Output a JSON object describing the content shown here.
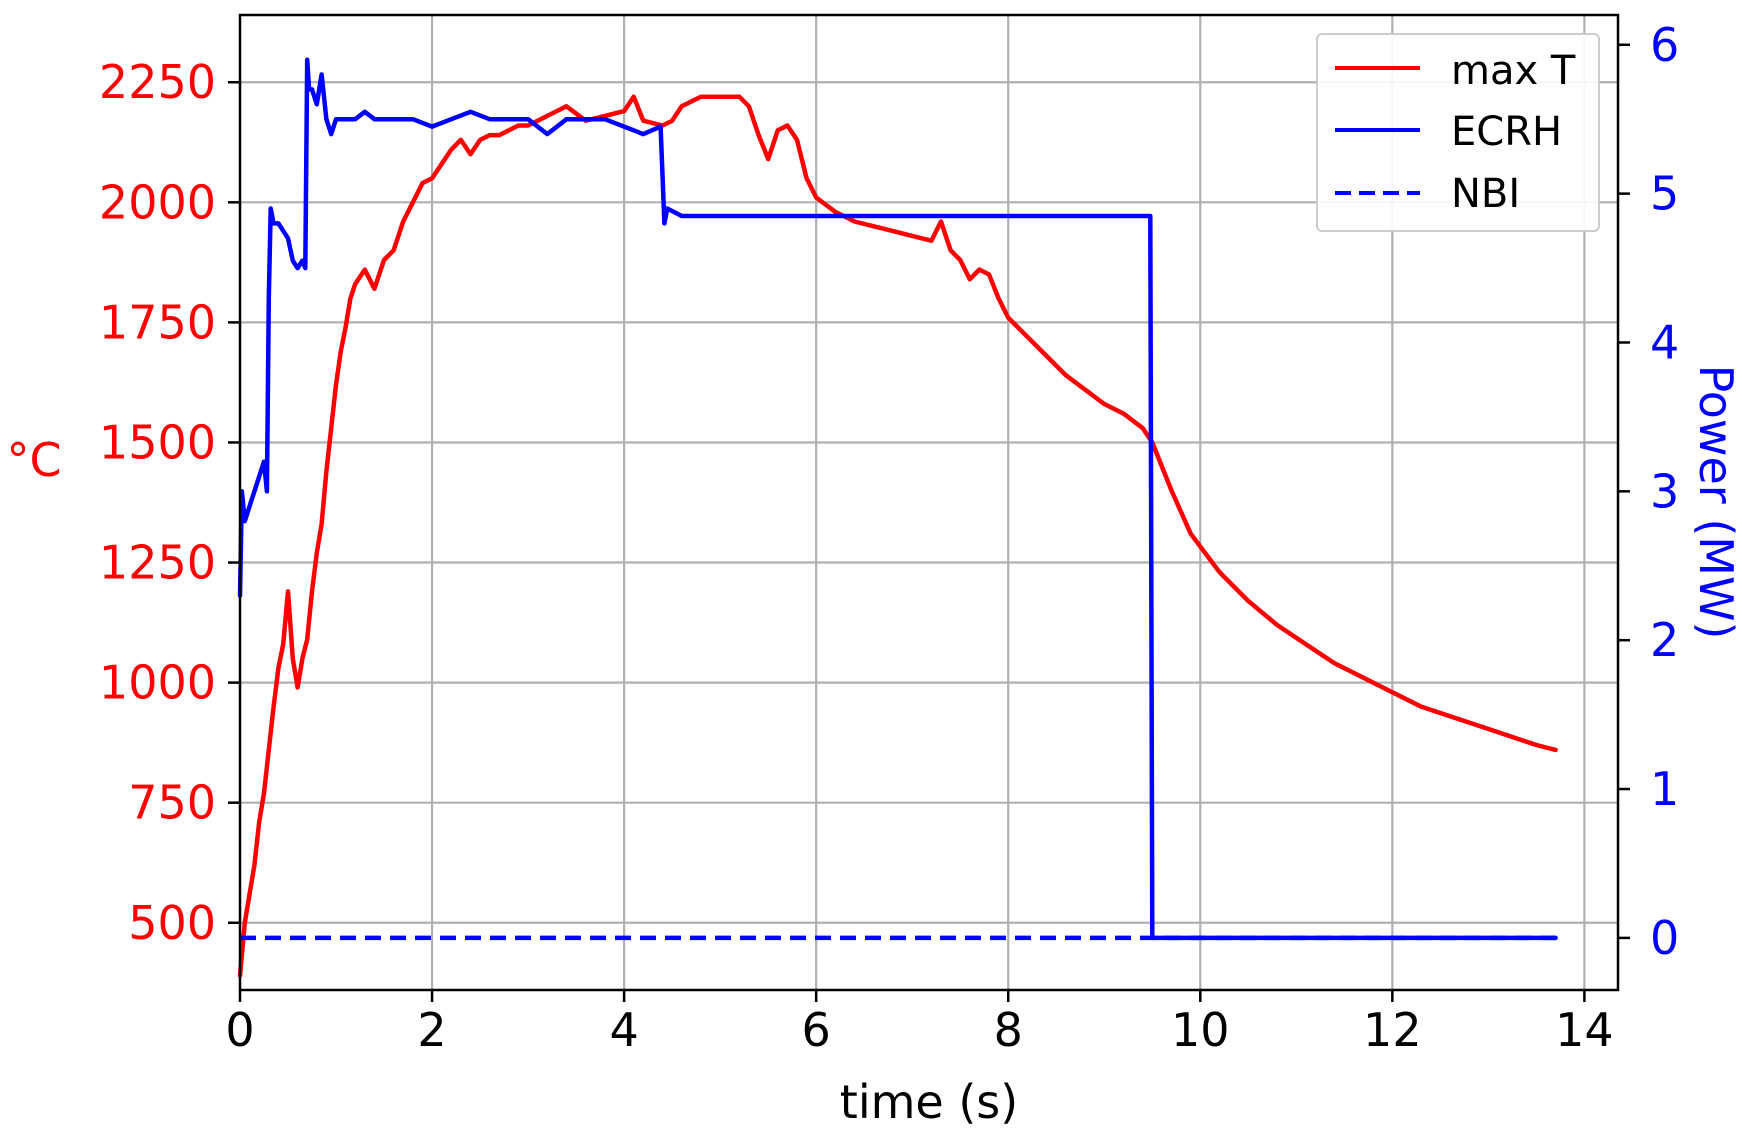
{
  "chart_data": {
    "type": "line",
    "title": "",
    "xlabel": "time (s)",
    "ylabel_left": "°C",
    "ylabel_right": "Power (MW)",
    "xlim": [
      0,
      14.35
    ],
    "ylim_left": [
      360,
      2390
    ],
    "ylim_right": [
      -0.35,
      6.2
    ],
    "grid": true,
    "legend_position": "top-right",
    "x_ticks": [
      0,
      2,
      4,
      6,
      8,
      10,
      12,
      14
    ],
    "y_left_ticks": [
      500,
      750,
      1000,
      1250,
      1500,
      1750,
      2000,
      2250
    ],
    "y_right_ticks": [
      0,
      1,
      2,
      3,
      4,
      5,
      6
    ],
    "colors": {
      "left_axis": "#ff0000",
      "right_axis": "#0000ff",
      "grid": "#b0b0b0",
      "axes": "#000000"
    },
    "series": [
      {
        "name": "max T",
        "axis": "left",
        "color": "#ff0000",
        "style": "solid",
        "x": [
          0.0,
          0.05,
          0.1,
          0.15,
          0.2,
          0.25,
          0.3,
          0.35,
          0.4,
          0.45,
          0.5,
          0.55,
          0.6,
          0.65,
          0.7,
          0.75,
          0.8,
          0.85,
          0.9,
          0.95,
          1.0,
          1.05,
          1.1,
          1.15,
          1.2,
          1.3,
          1.4,
          1.5,
          1.6,
          1.7,
          1.8,
          1.9,
          2.0,
          2.1,
          2.2,
          2.3,
          2.4,
          2.5,
          2.6,
          2.7,
          2.8,
          2.9,
          3.0,
          3.2,
          3.4,
          3.6,
          3.8,
          4.0,
          4.1,
          4.2,
          4.4,
          4.5,
          4.6,
          4.8,
          5.0,
          5.2,
          5.3,
          5.4,
          5.5,
          5.6,
          5.7,
          5.8,
          5.9,
          6.0,
          6.2,
          6.4,
          6.6,
          6.8,
          7.0,
          7.2,
          7.3,
          7.4,
          7.5,
          7.6,
          7.7,
          7.8,
          7.9,
          8.0,
          8.2,
          8.4,
          8.6,
          8.8,
          9.0,
          9.2,
          9.4,
          9.5,
          9.7,
          9.9,
          10.2,
          10.5,
          10.8,
          11.1,
          11.4,
          11.7,
          12.0,
          12.3,
          12.6,
          12.9,
          13.2,
          13.5,
          13.7
        ],
        "values": [
          390,
          500,
          560,
          620,
          710,
          770,
          860,
          950,
          1030,
          1080,
          1190,
          1050,
          990,
          1050,
          1090,
          1190,
          1270,
          1330,
          1440,
          1530,
          1620,
          1690,
          1740,
          1800,
          1830,
          1860,
          1820,
          1880,
          1900,
          1960,
          2000,
          2040,
          2050,
          2080,
          2110,
          2130,
          2100,
          2130,
          2140,
          2140,
          2150,
          2160,
          2160,
          2180,
          2200,
          2170,
          2180,
          2190,
          2220,
          2170,
          2160,
          2170,
          2200,
          2220,
          2220,
          2220,
          2200,
          2140,
          2090,
          2150,
          2160,
          2130,
          2050,
          2010,
          1980,
          1960,
          1950,
          1940,
          1930,
          1920,
          1960,
          1900,
          1880,
          1840,
          1860,
          1850,
          1800,
          1760,
          1720,
          1680,
          1640,
          1610,
          1580,
          1560,
          1530,
          1500,
          1400,
          1310,
          1230,
          1170,
          1120,
          1080,
          1040,
          1010,
          980,
          950,
          930,
          910,
          890,
          870,
          860
        ]
      },
      {
        "name": "ECRH",
        "axis": "right",
        "color": "#0000ff",
        "style": "solid",
        "x": [
          0.0,
          0.02,
          0.05,
          0.1,
          0.15,
          0.2,
          0.25,
          0.28,
          0.3,
          0.32,
          0.35,
          0.4,
          0.45,
          0.5,
          0.55,
          0.6,
          0.65,
          0.68,
          0.7,
          0.72,
          0.75,
          0.8,
          0.85,
          0.9,
          0.95,
          1.0,
          1.1,
          1.2,
          1.3,
          1.4,
          1.5,
          1.6,
          1.8,
          2.0,
          2.2,
          2.4,
          2.6,
          2.8,
          3.0,
          3.2,
          3.4,
          3.6,
          3.8,
          4.0,
          4.2,
          4.38,
          4.42,
          4.45,
          4.6,
          4.8,
          5.0,
          5.2,
          5.5,
          6.0,
          6.5,
          7.0,
          7.5,
          8.0,
          8.5,
          9.0,
          9.3,
          9.48,
          9.5,
          9.55,
          10.0,
          10.5,
          11.0,
          11.5,
          12.0,
          12.5,
          13.0,
          13.5,
          13.7
        ],
        "values": [
          2.3,
          3.0,
          2.8,
          2.9,
          3.0,
          3.1,
          3.2,
          3.0,
          4.3,
          4.9,
          4.8,
          4.8,
          4.75,
          4.7,
          4.55,
          4.5,
          4.55,
          4.5,
          5.9,
          5.7,
          5.7,
          5.6,
          5.8,
          5.5,
          5.4,
          5.5,
          5.5,
          5.5,
          5.55,
          5.5,
          5.5,
          5.5,
          5.5,
          5.45,
          5.5,
          5.55,
          5.5,
          5.5,
          5.5,
          5.4,
          5.5,
          5.5,
          5.5,
          5.45,
          5.4,
          5.45,
          4.8,
          4.9,
          4.85,
          4.85,
          4.85,
          4.85,
          4.85,
          4.85,
          4.85,
          4.85,
          4.85,
          4.85,
          4.85,
          4.85,
          4.85,
          4.85,
          0.0,
          0.0,
          0.0,
          0.0,
          0.0,
          0.0,
          0.0,
          0.0,
          0.0,
          0.0,
          0.0
        ]
      },
      {
        "name": "NBI",
        "axis": "right",
        "color": "#0000ff",
        "style": "dashed",
        "x": [
          0.0,
          13.7
        ],
        "values": [
          0.0,
          0.0
        ]
      }
    ]
  }
}
